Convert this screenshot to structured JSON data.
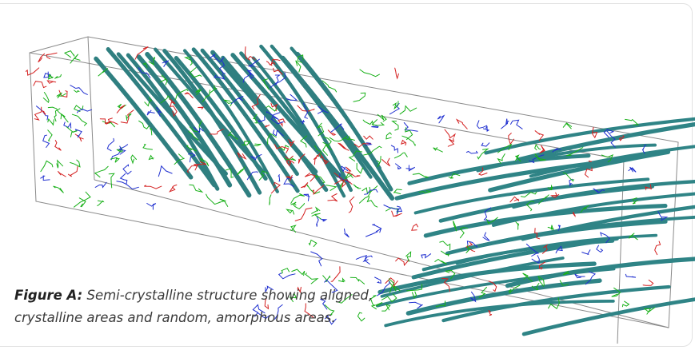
{
  "caption": {
    "label": "Figure A:",
    "lines": [
      "Semi-crystalline structure showing aligned,",
      "crystalline areas and random, amorphous areas."
    ]
  }
}
